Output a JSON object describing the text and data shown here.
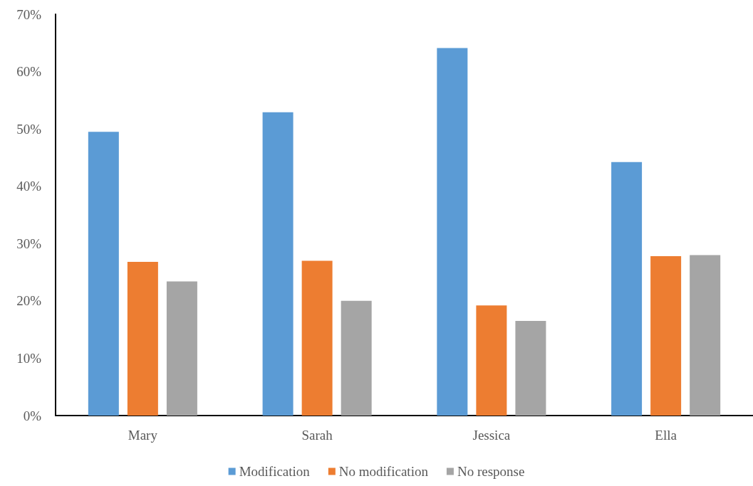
{
  "chart_data": {
    "type": "bar",
    "categories": [
      "Mary",
      "Sarah",
      "Jessica",
      "Ella"
    ],
    "series": [
      {
        "name": "Modification",
        "color": "#5b9bd5",
        "values": [
          49.5,
          52.9,
          64.1,
          44.2
        ]
      },
      {
        "name": "No modification",
        "color": "#ed7d31",
        "values": [
          26.8,
          27.0,
          19.2,
          27.8
        ]
      },
      {
        "name": "No response",
        "color": "#a5a5a5",
        "values": [
          23.4,
          20.0,
          16.5,
          28.0
        ]
      }
    ],
    "ylim": [
      0,
      70
    ],
    "yticks": [
      {
        "value": 0,
        "label": "0%"
      },
      {
        "value": 10,
        "label": "10%"
      },
      {
        "value": 20,
        "label": "20%"
      },
      {
        "value": 30,
        "label": "30%"
      },
      {
        "value": 40,
        "label": "40%"
      },
      {
        "value": 50,
        "label": "50%"
      },
      {
        "value": 60,
        "label": "60%"
      },
      {
        "value": 70,
        "label": "70%"
      }
    ],
    "grid": false,
    "legend": "bottom"
  }
}
